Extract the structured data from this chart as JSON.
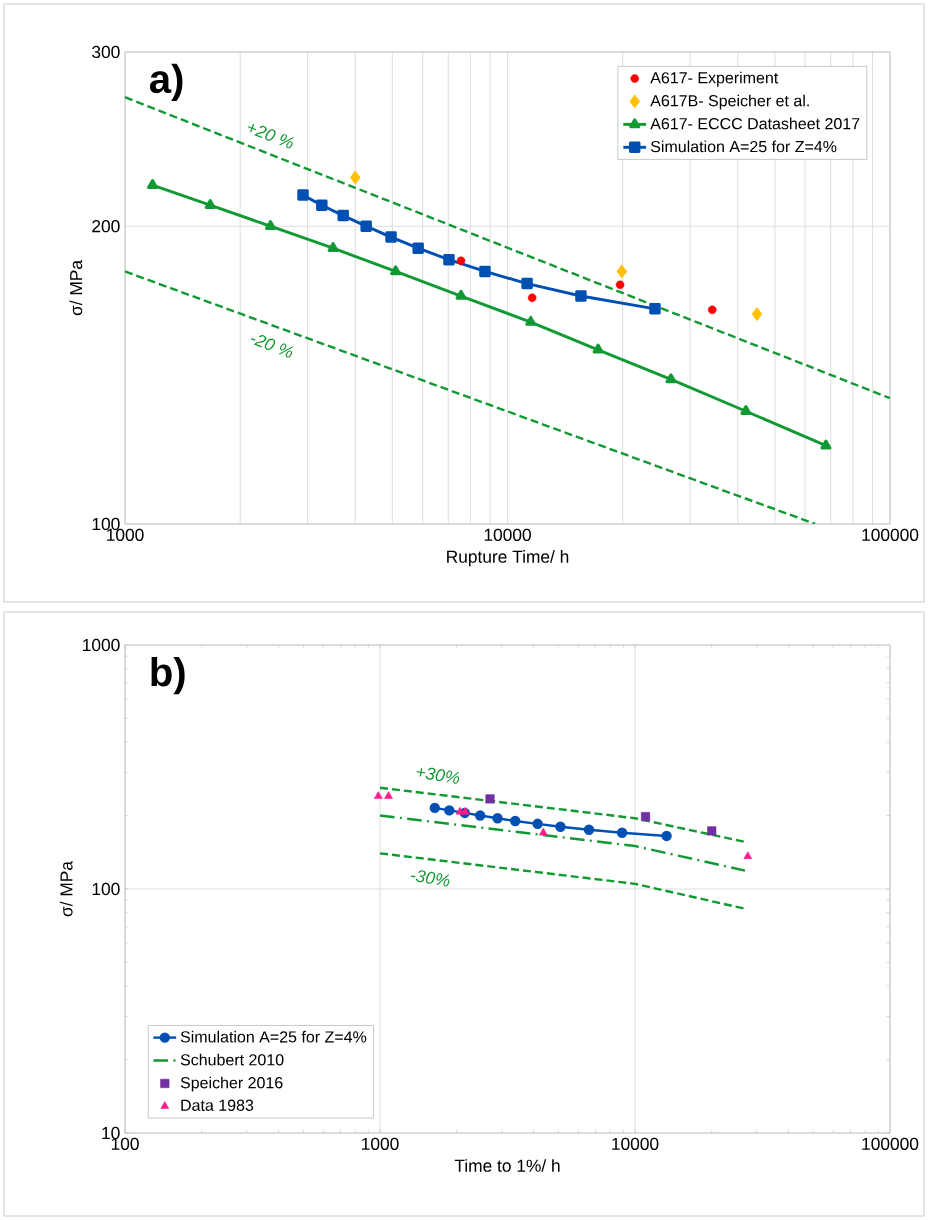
{
  "chart_data": [
    {
      "type": "line",
      "xlabel": "Rupture Time/ h",
      "ylabel": "σ/ MPa",
      "log": "xy",
      "grid": true,
      "legend": "top right",
      "xlim": [
        1000,
        100000
      ],
      "ylim": [
        100,
        300
      ],
      "xticks": [
        1000,
        {
          "value": 2000,
          "label": null
        },
        {
          "value": 3000,
          "label": null
        },
        {
          "value": 4000,
          "label": null
        },
        {
          "value": 5000,
          "label": null
        },
        {
          "value": 6000,
          "label": null
        },
        {
          "value": 7000,
          "label": null
        },
        {
          "value": 8000,
          "label": null
        },
        {
          "value": 9000,
          "label": null
        },
        10000,
        {
          "value": 20000,
          "label": null
        },
        {
          "value": 30000,
          "label": null
        },
        {
          "value": 40000,
          "label": null
        },
        {
          "value": 50000,
          "label": null
        },
        {
          "value": 60000,
          "label": null
        },
        {
          "value": 70000,
          "label": null
        },
        {
          "value": 80000,
          "label": null
        },
        {
          "value": 90000,
          "label": null
        },
        100000
      ],
      "yticks": [
        100,
        200,
        300
      ],
      "annotations": [
        "a)",
        "+20 %",
        "-20 %"
      ],
      "series": [
        {
          "type": "scatter",
          "name": "A617- Experiment",
          "color": "#ff0000",
          "marker": "circle",
          "x": [
            7560,
            11600,
            19700,
            34300
          ],
          "values": [
            184.5,
            169.3,
            174.5,
            164.6
          ]
        },
        {
          "type": "scatter",
          "name": "A617B- Speicher et al.",
          "color": "#ffc000",
          "marker": "diamond",
          "x": [
            4000,
            19900,
            44900
          ],
          "values": [
            224,
            180,
            163
          ]
        },
        {
          "name": "A617- ECCC Datasheet 2017",
          "color": "#119933",
          "marker": "triangle",
          "line_style": "solid",
          "x": [
            1180,
            1670,
            2400,
            3500,
            5100,
            7560,
            11500,
            17250,
            26750,
            42000,
            68000
          ],
          "values": [
            220,
            210,
            200,
            190,
            180,
            170,
            160,
            150,
            140,
            130,
            120
          ]
        },
        {
          "name": "Simulation A=25 for Z=4%",
          "color": "#0050b4",
          "marker": "square",
          "line_style": "solid",
          "x": [
            2920,
            3270,
            3720,
            4270,
            4960,
            5840,
            7030,
            8730,
            11250,
            15560,
            24300
          ],
          "values": [
            215,
            210,
            205,
            200,
            195,
            190,
            185,
            180,
            175,
            170,
            165
          ]
        },
        {
          "color": "#119933",
          "marker": "none",
          "line_style": "dashed",
          "x": [
            1000,
            100000
          ],
          "values": [
            270,
            134
          ]
        },
        {
          "color": "#119933",
          "marker": "none",
          "line_style": "dashed",
          "x": [
            1000,
            63700
          ],
          "values": [
            180,
            100
          ]
        }
      ]
    },
    {
      "type": "line",
      "xlabel": "Time to 1%/ h",
      "ylabel": "σ/ MPa",
      "log": "xy",
      "grid": true,
      "legend": "bottom left",
      "xlim": [
        100,
        100000
      ],
      "ylim": [
        10,
        1000
      ],
      "xticks": [
        100,
        1000,
        10000,
        100000
      ],
      "yticks": [
        10,
        100,
        1000
      ],
      "annotations": [
        "b)",
        "+30%",
        "-30%"
      ],
      "series": [
        {
          "name": "Simulation A=25 for Z=4%",
          "color": "#0050b4",
          "marker": "circle",
          "line_style": "solid",
          "x": [
            1640,
            1870,
            2150,
            2470,
            2890,
            3390,
            4150,
            5100,
            6600,
            8900,
            13300
          ],
          "values": [
            215,
            210,
            205,
            200,
            195,
            190,
            185,
            180,
            175,
            170,
            165
          ]
        },
        {
          "name": "Schubert 2010",
          "color": "#119933",
          "marker": "none",
          "line_style": "dashdot",
          "x": [
            1000,
            10000,
            27000
          ],
          "values": [
            200,
            150,
            119
          ]
        },
        {
          "type": "scatter",
          "name": "Speicher 2016",
          "color": "#7030a0",
          "marker": "square",
          "x": [
            2700,
            11000,
            20000
          ],
          "values": [
            234,
            198,
            173
          ]
        },
        {
          "type": "scatter",
          "name": "Data 1983",
          "color": "#ff1c8f",
          "marker": "triangle",
          "x": [
            985,
            1080,
            2060,
            2160,
            4370,
            27700
          ],
          "values": [
            240,
            240,
            207,
            207,
            170,
            136
          ]
        },
        {
          "color": "#119933",
          "marker": "none",
          "line_style": "dashed",
          "x": [
            1000,
            10000,
            27000
          ],
          "values": [
            260,
            195,
            156
          ]
        },
        {
          "color": "#119933",
          "marker": "none",
          "line_style": "dashed",
          "x": [
            1000,
            10000,
            27000
          ],
          "values": [
            140,
            105,
            83
          ]
        }
      ]
    }
  ]
}
